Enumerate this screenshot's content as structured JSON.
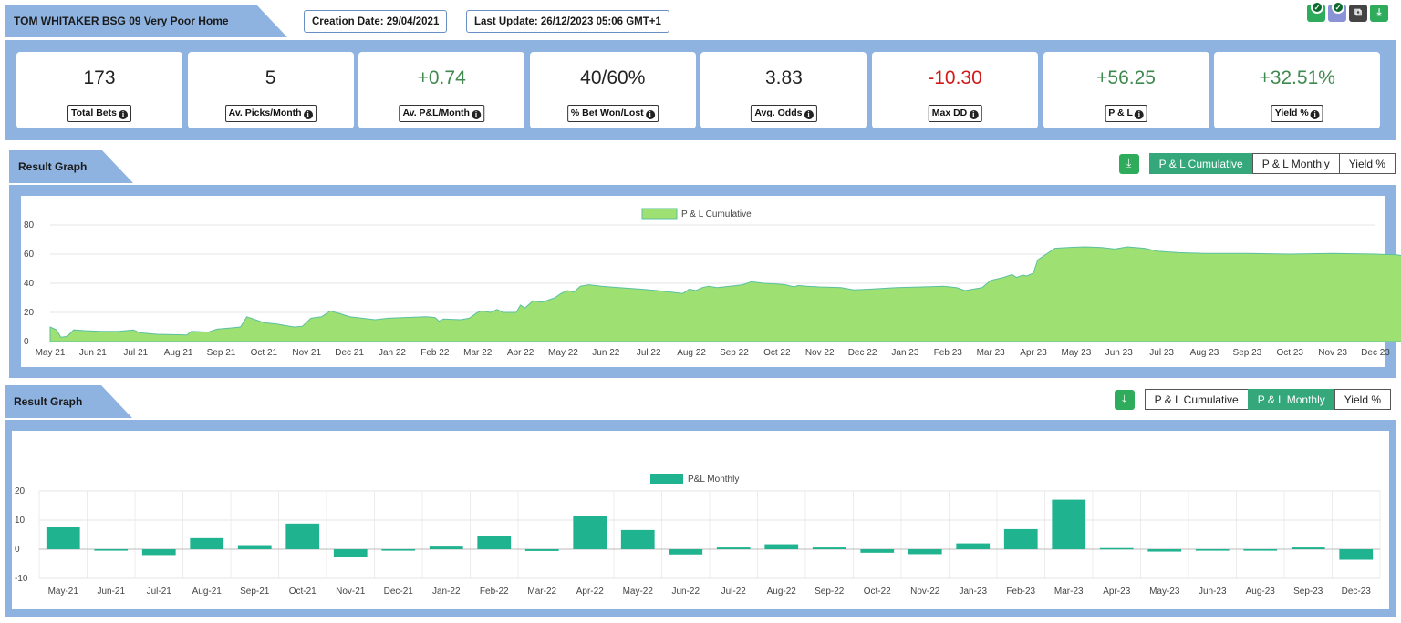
{
  "header": {
    "title": "TOM WHITAKER BSG 09 Very Poor Home",
    "creation_date": "Creation Date: 29/04/2021",
    "last_update": "Last Update: 26/12/2023 05:06 GMT+1",
    "icons": [
      "check-badge-icon",
      "check-badge-icon",
      "copy-icon",
      "download-icon"
    ]
  },
  "stats": [
    {
      "value": "173",
      "label": "Total Bets",
      "tone": "neutral"
    },
    {
      "value": "5",
      "label": "Av. Picks/Month",
      "tone": "neutral"
    },
    {
      "value": "+0.74",
      "label": "Av. P&L/Month",
      "tone": "pos"
    },
    {
      "value": "40/60%",
      "label": "% Bet Won/Lost",
      "tone": "neutral"
    },
    {
      "value": "3.83",
      "label": "Avg. Odds",
      "tone": "neutral"
    },
    {
      "value": "-10.30",
      "label": "Max DD",
      "tone": "neg"
    },
    {
      "value": "+56.25",
      "label": "P & L",
      "tone": "pos"
    },
    {
      "value": "+32.51%",
      "label": "Yield %",
      "tone": "pos"
    }
  ],
  "colors": {
    "panel": "#8fb3e0",
    "accent_green": "#35a87b",
    "area_fill": "#9ee072",
    "area_line": "#5bc0a0",
    "bar": "#1fb38f",
    "positive": "#3f8a4f",
    "negative": "#d11a1a"
  },
  "graph1": {
    "title": "Result Graph",
    "toggle": [
      "P & L Cumulative",
      "P & L Monthly",
      "Yield %"
    ],
    "active": 0
  },
  "graph2": {
    "title": "Result Graph",
    "toggle": [
      "P & L Cumulative",
      "P & L Monthly",
      "Yield %"
    ],
    "active": 1
  },
  "chart_data": [
    {
      "type": "area",
      "legend": "P & L Cumulative",
      "ylim": [
        0,
        80
      ],
      "yticks": [
        0,
        20,
        40,
        60,
        80
      ],
      "grid": true,
      "legend_position": "top-center",
      "x_ticks": [
        "May 21",
        "Jun 21",
        "Jul 21",
        "Aug 21",
        "Sep 21",
        "Oct 21",
        "Nov 21",
        "Dec 21",
        "Jan 22",
        "Feb 22",
        "Mar 22",
        "Apr 22",
        "May 22",
        "Jun 22",
        "Jul 22",
        "Aug 22",
        "Sep 22",
        "Oct 22",
        "Nov 22",
        "Dec 22",
        "Jan 23",
        "Feb 23",
        "Mar 23",
        "Apr 23",
        "May 23",
        "Jun 23",
        "Jul 23",
        "Aug 23",
        "Sep 23",
        "Oct 23",
        "Nov 23",
        "Dec 23"
      ],
      "points": [
        [
          0,
          10
        ],
        [
          0.15,
          8
        ],
        [
          0.25,
          3
        ],
        [
          0.4,
          3.5
        ],
        [
          0.55,
          8
        ],
        [
          0.8,
          7.5
        ],
        [
          1.2,
          7
        ],
        [
          1.6,
          7
        ],
        [
          1.95,
          8
        ],
        [
          2.1,
          6
        ],
        [
          2.5,
          5
        ],
        [
          3.2,
          4.5
        ],
        [
          3.3,
          7
        ],
        [
          3.7,
          6.5
        ],
        [
          3.9,
          8.5
        ],
        [
          4.3,
          9.5
        ],
        [
          4.45,
          10
        ],
        [
          4.6,
          17
        ],
        [
          4.8,
          15
        ],
        [
          5.0,
          13
        ],
        [
          5.3,
          12
        ],
        [
          5.5,
          11
        ],
        [
          5.7,
          10
        ],
        [
          5.9,
          10.5
        ],
        [
          6.1,
          16
        ],
        [
          6.35,
          17
        ],
        [
          6.55,
          21
        ],
        [
          6.8,
          19
        ],
        [
          7.0,
          17
        ],
        [
          7.3,
          16
        ],
        [
          7.6,
          15
        ],
        [
          7.9,
          16
        ],
        [
          8.3,
          16.5
        ],
        [
          8.8,
          17
        ],
        [
          9.0,
          16.5
        ],
        [
          9.1,
          14
        ],
        [
          9.2,
          15.5
        ],
        [
          9.6,
          15
        ],
        [
          9.8,
          16
        ],
        [
          10.0,
          20
        ],
        [
          10.1,
          21
        ],
        [
          10.3,
          20
        ],
        [
          10.45,
          22
        ],
        [
          10.6,
          20
        ],
        [
          10.9,
          20
        ],
        [
          11.0,
          25
        ],
        [
          11.1,
          23
        ],
        [
          11.3,
          28
        ],
        [
          11.5,
          27
        ],
        [
          11.8,
          30
        ],
        [
          11.95,
          33
        ],
        [
          12.1,
          35
        ],
        [
          12.25,
          34
        ],
        [
          12.4,
          38
        ],
        [
          12.6,
          39
        ],
        [
          12.9,
          38
        ],
        [
          13.3,
          37
        ],
        [
          13.8,
          36
        ],
        [
          14.2,
          35
        ],
        [
          14.5,
          34
        ],
        [
          14.8,
          33
        ],
        [
          14.95,
          36
        ],
        [
          15.1,
          35
        ],
        [
          15.25,
          37
        ],
        [
          15.4,
          38
        ],
        [
          15.6,
          37
        ],
        [
          15.9,
          38
        ],
        [
          16.2,
          39
        ],
        [
          16.4,
          41
        ],
        [
          16.7,
          40
        ],
        [
          17.0,
          39.5
        ],
        [
          17.2,
          39
        ],
        [
          17.4,
          37.5
        ],
        [
          17.5,
          38.5
        ],
        [
          17.7,
          38
        ],
        [
          18.0,
          37.5
        ],
        [
          18.5,
          37
        ],
        [
          18.8,
          35.5
        ],
        [
          19.2,
          36
        ],
        [
          19.8,
          37
        ],
        [
          20.4,
          37.5
        ],
        [
          20.9,
          38
        ],
        [
          21.2,
          37
        ],
        [
          21.4,
          35
        ],
        [
          21.6,
          36
        ],
        [
          21.8,
          37
        ],
        [
          22.0,
          42
        ],
        [
          22.3,
          44
        ],
        [
          22.5,
          46
        ],
        [
          22.6,
          44
        ],
        [
          22.75,
          45.5
        ],
        [
          22.85,
          45
        ],
        [
          23.0,
          47
        ],
        [
          23.1,
          56
        ],
        [
          23.3,
          60
        ],
        [
          23.5,
          64
        ],
        [
          23.8,
          64.5
        ],
        [
          24.2,
          65
        ],
        [
          24.6,
          64.5
        ],
        [
          24.9,
          63.5
        ],
        [
          25.2,
          65
        ],
        [
          25.6,
          64
        ],
        [
          25.9,
          62
        ],
        [
          26.4,
          61
        ],
        [
          27.0,
          60.5
        ],
        [
          28.0,
          60.5
        ],
        [
          29.0,
          60
        ],
        [
          30.0,
          60.5
        ],
        [
          31.0,
          60
        ],
        [
          31.5,
          59.5
        ],
        [
          31.8,
          58
        ],
        [
          32.0,
          56.5
        ]
      ]
    },
    {
      "type": "bar",
      "legend": "P&L Monthly",
      "ylim": [
        -10,
        20
      ],
      "yticks": [
        -10,
        0,
        10,
        20
      ],
      "grid": true,
      "legend_position": "top-center",
      "categories": [
        "May-21",
        "Jun-21",
        "Jul-21",
        "Aug-21",
        "Sep-21",
        "Oct-21",
        "Nov-21",
        "Dec-21",
        "Jan-22",
        "Feb-22",
        "Mar-22",
        "Apr-22",
        "May-22",
        "Jun-22",
        "Jul-22",
        "Aug-22",
        "Sep-22",
        "Oct-22",
        "Nov-22",
        "Jan-23",
        "Feb-23",
        "Mar-23",
        "Apr-23",
        "May-23",
        "Jun-23",
        "Aug-23",
        "Sep-23",
        "Dec-23"
      ],
      "values": [
        7.5,
        -0.5,
        -2,
        3.8,
        1.4,
        8.8,
        -2.6,
        -0.5,
        0.9,
        4.5,
        -0.6,
        11.3,
        6.6,
        -1.8,
        0.6,
        1.7,
        0.6,
        -1.2,
        -1.7,
        2.0,
        6.9,
        17.0,
        0.4,
        -0.8,
        -0.5,
        -0.5,
        0.6,
        -3.6
      ]
    }
  ]
}
